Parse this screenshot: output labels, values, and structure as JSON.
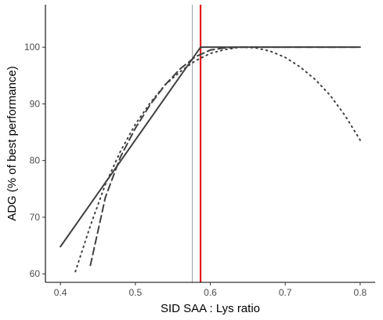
{
  "chart_data": {
    "type": "line",
    "xlabel": "SID SAA : Lys ratio",
    "ylabel": "ADG (% of best performance)",
    "xlim": [
      0.38,
      0.82
    ],
    "ylim": [
      58.5,
      107.5
    ],
    "x_ticks": [
      0.4,
      0.5,
      0.6,
      0.7,
      0.8
    ],
    "y_ticks": [
      60,
      70,
      80,
      90,
      100
    ],
    "x_tick_labels": [
      "0.4",
      "0.5",
      "0.6",
      "0.7",
      "0.8"
    ],
    "y_tick_labels": [
      "60",
      "70",
      "80",
      "90",
      "100"
    ],
    "grid": false,
    "legend": "none",
    "series": [
      {
        "style": "solid",
        "color": "#404040",
        "x": [
          0.4,
          0.587,
          0.8
        ],
        "y": [
          64.8,
          100.0,
          100.0
        ]
      },
      {
        "style": "dashed",
        "color": "#404040",
        "x": [
          0.44,
          0.46,
          0.48,
          0.5,
          0.52,
          0.54,
          0.56,
          0.58,
          0.6,
          0.62,
          0.64,
          0.7,
          0.8
        ],
        "y": [
          61.5,
          73.5,
          80.6,
          85.7,
          89.9,
          93.4,
          96.2,
          98.3,
          99.5,
          99.9,
          100.0,
          100.0,
          100.0
        ]
      },
      {
        "style": "dotted",
        "color": "#404040",
        "x": [
          0.42,
          0.44,
          0.46,
          0.48,
          0.5,
          0.52,
          0.54,
          0.56,
          0.58,
          0.6,
          0.62,
          0.64,
          0.66,
          0.68,
          0.7,
          0.72,
          0.74,
          0.76,
          0.78,
          0.8
        ],
        "y": [
          60.4,
          68.5,
          75.8,
          81.6,
          86.4,
          90.2,
          93.4,
          95.7,
          97.6,
          98.9,
          99.6,
          100.0,
          99.9,
          99.3,
          98.2,
          96.5,
          94.3,
          91.5,
          87.9,
          83.6
        ]
      }
    ],
    "reference_lines": [
      {
        "axis": "x",
        "value": 0.576,
        "color": "#a0a0a0"
      },
      {
        "axis": "x",
        "value": 0.587,
        "color": "#e41a1c"
      }
    ]
  }
}
